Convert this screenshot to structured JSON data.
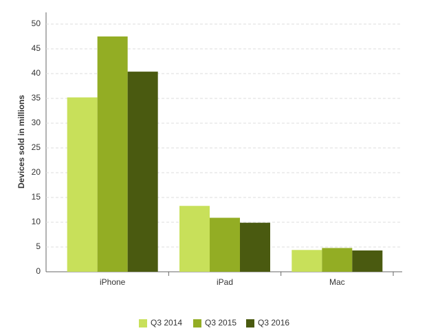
{
  "chart_data": {
    "type": "bar",
    "y_label": "Devices sold in millions",
    "categories": [
      "iPhone",
      "iPad",
      "Mac"
    ],
    "series": [
      {
        "name": "Q3 2014",
        "color": "#c8e05a",
        "values": [
          35.2,
          13.3,
          4.4
        ]
      },
      {
        "name": "Q3 2015",
        "color": "#93ad24",
        "values": [
          47.5,
          10.9,
          4.8
        ]
      },
      {
        "name": "Q3 2016",
        "color": "#4a5a10",
        "values": [
          40.4,
          9.9,
          4.3
        ]
      }
    ],
    "ylim": [
      0,
      50
    ],
    "yticks": [
      0,
      5,
      10,
      15,
      20,
      25,
      30,
      35,
      40,
      45,
      50
    ],
    "grid": true,
    "legend": "bottom"
  }
}
